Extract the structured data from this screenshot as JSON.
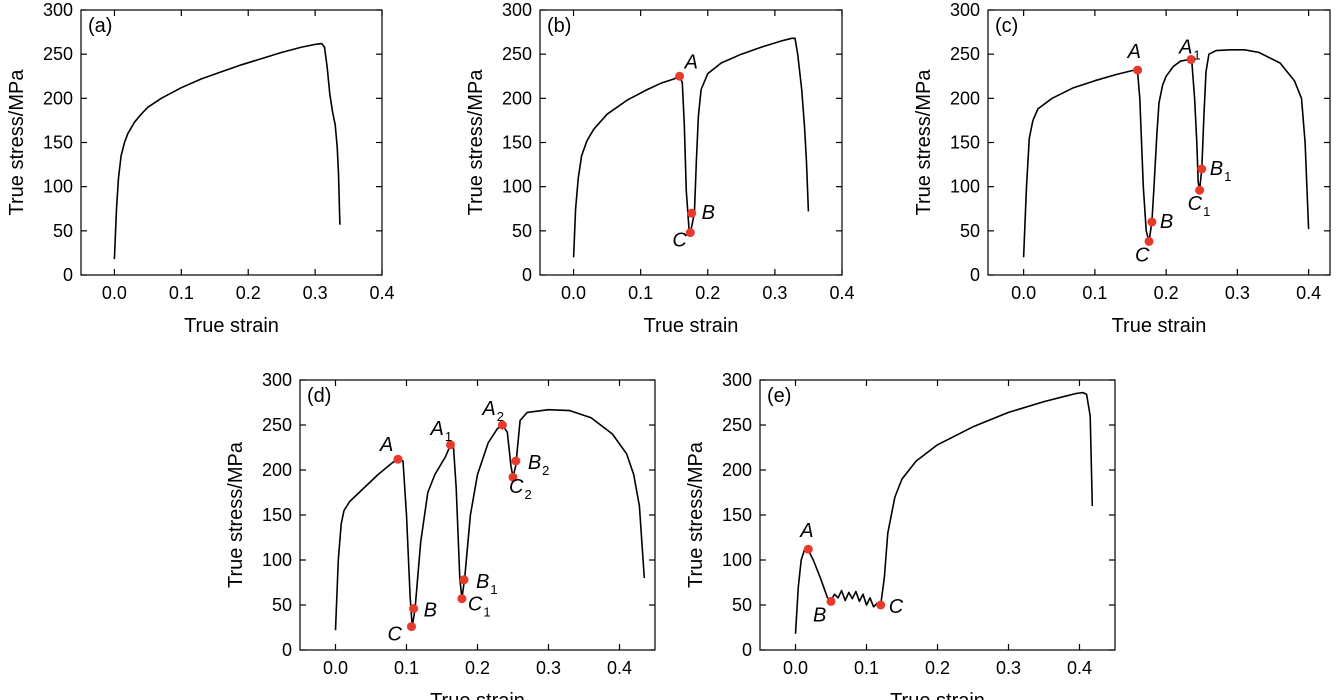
{
  "figure": {
    "panel_count": 5
  },
  "chart_data": [
    {
      "type": "line",
      "panel_label": "(a)",
      "xlabel": "True strain",
      "ylabel": "True stress/MPa",
      "xlim": [
        -0.05,
        0.4
      ],
      "ylim": [
        0,
        300
      ],
      "xticks": [
        0.0,
        0.1,
        0.2,
        0.3,
        0.4
      ],
      "xtick_labels": [
        "0.0",
        "0.1",
        "0.2",
        "0.3",
        "0.4"
      ],
      "yticks": [
        0,
        50,
        100,
        150,
        200,
        250,
        300
      ],
      "ytick_labels": [
        "0",
        "50",
        "100",
        "150",
        "200",
        "250",
        "300"
      ],
      "series": [
        {
          "name": "curve",
          "x": [
            0,
            0.003,
            0.006,
            0.01,
            0.015,
            0.02,
            0.03,
            0.04,
            0.05,
            0.07,
            0.1,
            0.13,
            0.16,
            0.19,
            0.22,
            0.25,
            0.28,
            0.3,
            0.31,
            0.314,
            0.318,
            0.322,
            0.326,
            0.33,
            0.333,
            0.335,
            0.337
          ],
          "y": [
            18,
            75,
            110,
            135,
            150,
            160,
            173,
            182,
            190,
            200,
            212,
            222,
            230,
            238,
            245,
            252,
            258,
            261,
            262,
            258,
            235,
            205,
            185,
            170,
            145,
            115,
            57
          ]
        }
      ],
      "points": []
    },
    {
      "type": "line",
      "panel_label": "(b)",
      "xlabel": "True strain",
      "ylabel": "True stress/MPa",
      "xlim": [
        -0.05,
        0.4
      ],
      "ylim": [
        0,
        300
      ],
      "xticks": [
        0.0,
        0.1,
        0.2,
        0.3,
        0.4
      ],
      "xtick_labels": [
        "0.0",
        "0.1",
        "0.2",
        "0.3",
        "0.4"
      ],
      "yticks": [
        0,
        50,
        100,
        150,
        200,
        250,
        300
      ],
      "ytick_labels": [
        "0",
        "50",
        "100",
        "150",
        "200",
        "250",
        "300"
      ],
      "series": [
        {
          "name": "curve",
          "x": [
            0,
            0.003,
            0.007,
            0.012,
            0.02,
            0.03,
            0.05,
            0.08,
            0.11,
            0.13,
            0.15,
            0.158,
            0.162,
            0.165,
            0.168,
            0.172,
            0.174,
            0.176,
            0.18,
            0.183,
            0.186,
            0.19,
            0.2,
            0.22,
            0.25,
            0.28,
            0.31,
            0.325,
            0.33,
            0.334,
            0.34,
            0.344,
            0.347,
            0.35
          ],
          "y": [
            20,
            75,
            110,
            135,
            152,
            165,
            182,
            198,
            210,
            217,
            222,
            225,
            218,
            170,
            95,
            52,
            48,
            55,
            70,
            130,
            180,
            210,
            228,
            240,
            250,
            258,
            265,
            268,
            268,
            250,
            210,
            170,
            130,
            72
          ]
        }
      ],
      "points": [
        {
          "label": "A",
          "sub": "",
          "x": 0.158,
          "y": 225
        },
        {
          "label": "B",
          "sub": "",
          "x": 0.176,
          "y": 70
        },
        {
          "label": "C",
          "sub": "",
          "x": 0.174,
          "y": 48
        }
      ]
    },
    {
      "type": "line",
      "panel_label": "(c)",
      "xlabel": "True strain",
      "ylabel": "True stress/MPa",
      "xlim": [
        -0.05,
        0.43
      ],
      "ylim": [
        0,
        300
      ],
      "xticks": [
        0.0,
        0.1,
        0.2,
        0.3,
        0.4
      ],
      "xtick_labels": [
        "0.0",
        "0.1",
        "0.2",
        "0.3",
        "0.4"
      ],
      "yticks": [
        0,
        50,
        100,
        150,
        200,
        250,
        300
      ],
      "ytick_labels": [
        "0",
        "50",
        "100",
        "150",
        "200",
        "250",
        "300"
      ],
      "series": [
        {
          "name": "curve",
          "x": [
            0,
            0.004,
            0.008,
            0.013,
            0.02,
            0.04,
            0.07,
            0.1,
            0.13,
            0.155,
            0.16,
            0.163,
            0.168,
            0.172,
            0.176,
            0.18,
            0.183,
            0.187,
            0.19,
            0.195,
            0.2,
            0.21,
            0.22,
            0.232,
            0.236,
            0.24,
            0.243,
            0.245,
            0.247,
            0.25,
            0.253,
            0.256,
            0.26,
            0.27,
            0.29,
            0.31,
            0.33,
            0.36,
            0.38,
            0.39,
            0.395,
            0.4
          ],
          "y": [
            20,
            100,
            155,
            175,
            188,
            200,
            212,
            220,
            227,
            232,
            230,
            200,
            100,
            50,
            38,
            60,
            100,
            160,
            195,
            215,
            225,
            236,
            242,
            244,
            242,
            200,
            150,
            105,
            96,
            120,
            180,
            230,
            250,
            254,
            255,
            255,
            252,
            240,
            220,
            200,
            150,
            52
          ]
        }
      ],
      "points": [
        {
          "label": "A",
          "sub": "",
          "x": 0.16,
          "y": 232
        },
        {
          "label": "A",
          "sub": "1",
          "x": 0.235,
          "y": 244
        },
        {
          "label": "B",
          "sub": "",
          "x": 0.18,
          "y": 60
        },
        {
          "label": "B",
          "sub": "1",
          "x": 0.25,
          "y": 120
        },
        {
          "label": "C",
          "sub": "",
          "x": 0.176,
          "y": 38
        },
        {
          "label": "C",
          "sub": "1",
          "x": 0.247,
          "y": 96
        }
      ]
    },
    {
      "type": "line",
      "panel_label": "(d)",
      "xlabel": "True strain",
      "ylabel": "True stress/MPa",
      "xlim": [
        -0.05,
        0.45
      ],
      "ylim": [
        0,
        300
      ],
      "xticks": [
        0.0,
        0.1,
        0.2,
        0.3,
        0.4
      ],
      "xtick_labels": [
        "0.0",
        "0.1",
        "0.2",
        "0.3",
        "0.4"
      ],
      "yticks": [
        0,
        50,
        100,
        150,
        200,
        250,
        300
      ],
      "ytick_labels": [
        "0",
        "50",
        "100",
        "150",
        "200",
        "250",
        "300"
      ],
      "series": [
        {
          "name": "curve",
          "x": [
            0,
            0.004,
            0.008,
            0.012,
            0.02,
            0.04,
            0.06,
            0.08,
            0.088,
            0.095,
            0.1,
            0.105,
            0.108,
            0.112,
            0.12,
            0.13,
            0.14,
            0.155,
            0.162,
            0.166,
            0.17,
            0.175,
            0.178,
            0.182,
            0.19,
            0.2,
            0.215,
            0.228,
            0.235,
            0.242,
            0.247,
            0.25,
            0.254,
            0.26,
            0.27,
            0.3,
            0.33,
            0.36,
            0.39,
            0.41,
            0.42,
            0.428,
            0.435
          ],
          "y": [
            22,
            100,
            140,
            155,
            165,
            180,
            195,
            208,
            212,
            210,
            150,
            60,
            26,
            45,
            120,
            175,
            195,
            215,
            228,
            227,
            180,
            80,
            57,
            80,
            150,
            195,
            230,
            246,
            250,
            242,
            205,
            192,
            205,
            255,
            264,
            267,
            266,
            258,
            240,
            218,
            195,
            160,
            80
          ]
        }
      ],
      "points": [
        {
          "label": "A",
          "sub": "",
          "x": 0.088,
          "y": 212
        },
        {
          "label": "A",
          "sub": "1",
          "x": 0.162,
          "y": 228
        },
        {
          "label": "A",
          "sub": "2",
          "x": 0.235,
          "y": 250
        },
        {
          "label": "B",
          "sub": "",
          "x": 0.11,
          "y": 46
        },
        {
          "label": "B",
          "sub": "1",
          "x": 0.181,
          "y": 78
        },
        {
          "label": "B",
          "sub": "2",
          "x": 0.254,
          "y": 210
        },
        {
          "label": "C",
          "sub": "",
          "x": 0.107,
          "y": 26
        },
        {
          "label": "C",
          "sub": "1",
          "x": 0.178,
          "y": 57
        },
        {
          "label": "C",
          "sub": "2",
          "x": 0.25,
          "y": 192
        }
      ]
    },
    {
      "type": "line",
      "panel_label": "(e)",
      "xlabel": "True strain",
      "ylabel": "True stress/MPa",
      "xlim": [
        -0.05,
        0.45
      ],
      "ylim": [
        0,
        300
      ],
      "xticks": [
        0.0,
        0.1,
        0.2,
        0.3,
        0.4
      ],
      "xtick_labels": [
        "0.0",
        "0.1",
        "0.2",
        "0.3",
        "0.4"
      ],
      "yticks": [
        0,
        50,
        100,
        150,
        200,
        250,
        300
      ],
      "ytick_labels": [
        "0",
        "50",
        "100",
        "150",
        "200",
        "250",
        "300"
      ],
      "series": [
        {
          "name": "curve",
          "x": [
            0,
            0.004,
            0.008,
            0.013,
            0.018,
            0.025,
            0.035,
            0.045,
            0.05,
            0.055,
            0.06,
            0.065,
            0.07,
            0.075,
            0.08,
            0.085,
            0.09,
            0.095,
            0.1,
            0.105,
            0.11,
            0.115,
            0.12,
            0.125,
            0.13,
            0.14,
            0.15,
            0.17,
            0.2,
            0.25,
            0.3,
            0.35,
            0.38,
            0.395,
            0.405,
            0.41,
            0.415,
            0.418
          ],
          "y": [
            18,
            70,
            100,
            112,
            111,
            100,
            80,
            58,
            55,
            62,
            58,
            66,
            55,
            64,
            57,
            65,
            54,
            62,
            50,
            58,
            48,
            52,
            50,
            80,
            130,
            170,
            190,
            210,
            228,
            248,
            264,
            276,
            282,
            285,
            286,
            284,
            260,
            160
          ]
        }
      ],
      "points": [
        {
          "label": "A",
          "sub": "",
          "x": 0.018,
          "y": 112
        },
        {
          "label": "B",
          "sub": "",
          "x": 0.05,
          "y": 54
        },
        {
          "label": "C",
          "sub": "",
          "x": 0.12,
          "y": 50
        }
      ]
    }
  ]
}
